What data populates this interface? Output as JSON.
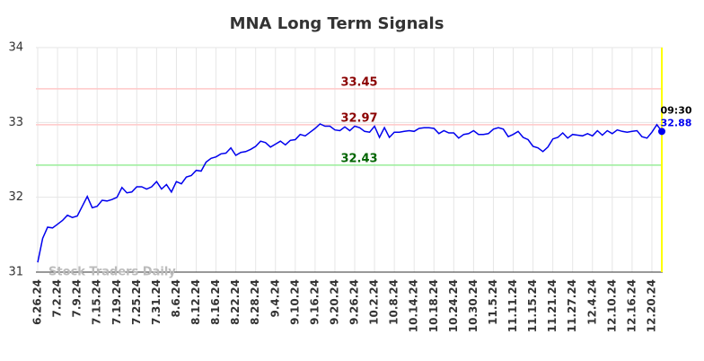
{
  "chart_data": {
    "type": "line",
    "title": "MNA Long Term Signals",
    "categories": [
      "6.26.24",
      null,
      null,
      null,
      "7.2.24",
      null,
      null,
      null,
      "7.9.24",
      null,
      null,
      null,
      "7.15.24",
      null,
      null,
      null,
      "7.19.24",
      null,
      null,
      null,
      "7.25.24",
      null,
      null,
      null,
      "7.31.24",
      null,
      null,
      null,
      "8.6.24",
      null,
      null,
      null,
      "8.12.24",
      null,
      null,
      null,
      "8.16.24",
      null,
      null,
      null,
      "8.22.24",
      null,
      null,
      null,
      "8.28.24",
      null,
      null,
      null,
      "9.4.24",
      null,
      null,
      null,
      "9.10.24",
      null,
      null,
      null,
      "9.16.24",
      null,
      null,
      null,
      "9.20.24",
      null,
      null,
      null,
      "9.26.24",
      null,
      null,
      null,
      "10.2.24",
      null,
      null,
      null,
      "10.8.24",
      null,
      null,
      null,
      "10.14.24",
      null,
      null,
      null,
      "10.18.24",
      null,
      null,
      null,
      "10.24.24",
      null,
      null,
      null,
      "10.30.24",
      null,
      null,
      null,
      "11.5.24",
      null,
      null,
      null,
      "11.11.24",
      null,
      null,
      null,
      "11.15.24",
      null,
      null,
      null,
      "11.21.24",
      null,
      null,
      null,
      "11.27.24",
      null,
      null,
      null,
      "12.4.24",
      null,
      null,
      null,
      "12.10.24",
      null,
      null,
      null,
      "12.16.24",
      null,
      null,
      null,
      "12.20.24",
      null,
      null
    ],
    "values": [
      31.13,
      31.45,
      31.6,
      31.59,
      31.64,
      31.69,
      31.76,
      31.73,
      31.75,
      31.88,
      32.01,
      31.86,
      31.88,
      31.96,
      31.95,
      31.97,
      32.0,
      32.13,
      32.06,
      32.07,
      32.14,
      32.14,
      32.11,
      32.14,
      32.21,
      32.11,
      32.17,
      32.07,
      32.21,
      32.18,
      32.27,
      32.29,
      32.36,
      32.35,
      32.47,
      32.52,
      32.54,
      32.58,
      32.59,
      32.66,
      32.56,
      32.6,
      32.61,
      32.64,
      32.68,
      32.75,
      32.73,
      32.67,
      32.71,
      32.75,
      32.7,
      32.76,
      32.77,
      32.84,
      32.82,
      32.87,
      32.92,
      32.98,
      32.95,
      32.95,
      32.9,
      32.89,
      32.94,
      32.89,
      32.95,
      32.93,
      32.88,
      32.87,
      32.95,
      32.8,
      32.93,
      32.8,
      32.87,
      32.87,
      32.88,
      32.89,
      32.88,
      32.92,
      32.93,
      32.93,
      32.92,
      32.85,
      32.89,
      32.86,
      32.86,
      32.79,
      32.84,
      32.85,
      32.89,
      32.84,
      32.84,
      32.85,
      32.91,
      32.93,
      32.91,
      32.81,
      32.84,
      32.88,
      32.8,
      32.77,
      32.68,
      32.66,
      32.61,
      32.67,
      32.78,
      32.8,
      32.86,
      32.79,
      32.84,
      32.83,
      32.82,
      32.85,
      32.82,
      32.89,
      32.83,
      32.89,
      32.85,
      32.9,
      32.88,
      32.87,
      32.88,
      32.89,
      32.81,
      32.79,
      32.87,
      32.97,
      32.88
    ],
    "color": "#0000ee",
    "ylim": [
      31,
      34
    ],
    "yticks": [
      31,
      32,
      33,
      34
    ],
    "grid": true,
    "hlines": [
      {
        "value": 33.45,
        "color": "#ffc8c8",
        "label_color": "#8b0000"
      },
      {
        "value": 32.97,
        "color": "#ffc8c8",
        "label_color": "#8b0000"
      },
      {
        "value": 32.43,
        "color": "#99ee99",
        "label_color": "#006400"
      }
    ],
    "last_time": "09:30",
    "marker_line_color": "#ffff00",
    "watermark": "Stock Traders Daily"
  }
}
